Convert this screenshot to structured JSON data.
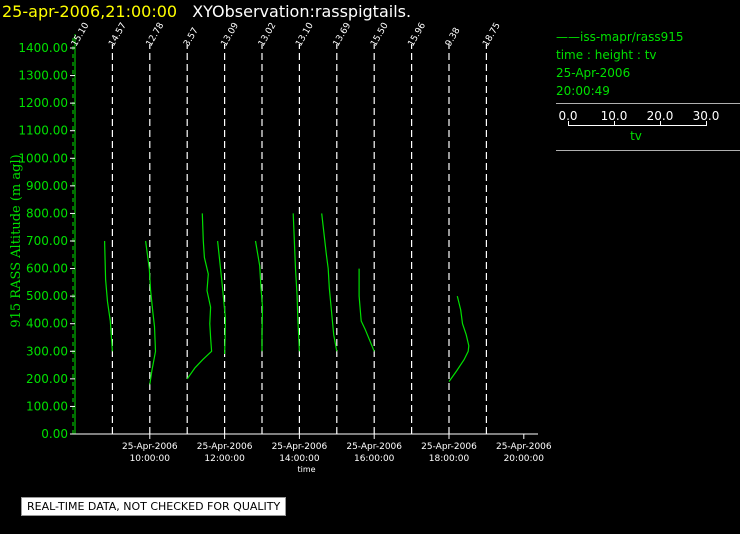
{
  "header": {
    "datetime": "25-apr-2006,21:00:00",
    "title": "XYObservation:rasspigtails."
  },
  "legend": {
    "series_name": "iss-mapr/rass915",
    "fields": "time : height : tv",
    "date": "25-Apr-2006",
    "time": "20:00:49",
    "scale_ticks": [
      "0.0",
      "10.0",
      "20.0",
      "30.0"
    ],
    "scale_label": "tv"
  },
  "footer_note": "REAL-TIME DATA, NOT CHECKED FOR QUALITY",
  "colors": {
    "data": "#00e000",
    "dashed": "#ffffff",
    "header_date": "#ffff00"
  },
  "chart_data": {
    "type": "line",
    "ylabel": "915 RASS Altitude (m agl)",
    "xlabel": "time",
    "ylim": [
      0,
      1400
    ],
    "yticks": [
      "0.00",
      "100.00",
      "200.00",
      "300.00",
      "400.00",
      "500.00",
      "600.00",
      "700.00",
      "800.00",
      "900.00",
      "1000.00",
      "1100.00",
      "1200.00",
      "1300.00",
      "1400.00"
    ],
    "xlim_hours": [
      8.0,
      21.0
    ],
    "xticks": [
      {
        "date": "25-Apr-2006",
        "time": "10:00:00",
        "hour": 10
      },
      {
        "date": "25-Apr-2006",
        "time": "12:00:00",
        "hour": 12
      },
      {
        "date": "25-Apr-2006",
        "time": "14:00:00",
        "hour": 14
      },
      {
        "date": "25-Apr-2006",
        "time": "16:00:00",
        "hour": 16
      },
      {
        "date": "25-Apr-2006",
        "time": "18:00:00",
        "hour": 18
      },
      {
        "date": "25-Apr-2006",
        "time": "20:00:00",
        "hour": 20
      }
    ],
    "tv_scale": "0 to 30 (tv units per legend scale)",
    "profiles": [
      {
        "label": "15.10",
        "hour": 8.0,
        "points": []
      },
      {
        "label": "14.57",
        "hour": 9.0,
        "points": [
          [
            0.0,
            300
          ],
          [
            -0.8,
            410
          ],
          [
            -1.9,
            480
          ],
          [
            -2.6,
            560
          ],
          [
            -3.0,
            700
          ]
        ]
      },
      {
        "label": "12.78",
        "hour": 10.0,
        "points": [
          [
            0.0,
            180
          ],
          [
            0.8,
            230
          ],
          [
            2.2,
            300
          ],
          [
            1.8,
            390
          ],
          [
            1.2,
            440
          ],
          [
            0.3,
            520
          ],
          [
            -0.2,
            600
          ],
          [
            -1.6,
            700
          ]
        ]
      },
      {
        "label": "3.57",
        "hour": 11.0,
        "points": [
          [
            0.0,
            200
          ],
          [
            3.0,
            240
          ],
          [
            6.0,
            270
          ],
          [
            9.4,
            300
          ],
          [
            9.0,
            350
          ],
          [
            8.7,
            400
          ],
          [
            9.0,
            460
          ],
          [
            7.6,
            520
          ],
          [
            8.1,
            580
          ],
          [
            6.6,
            640
          ],
          [
            6.2,
            700
          ],
          [
            5.8,
            800
          ]
        ]
      },
      {
        "label": "13.09",
        "hour": 12.0,
        "points": [
          [
            0.0,
            290
          ],
          [
            0.2,
            350
          ],
          [
            0.3,
            420
          ],
          [
            -0.5,
            500
          ],
          [
            -1.1,
            560
          ],
          [
            -2.7,
            700
          ]
        ]
      },
      {
        "label": "13.02",
        "hour": 13.0,
        "points": [
          [
            0.0,
            300
          ],
          [
            0.0,
            360
          ],
          [
            0.2,
            460
          ],
          [
            -0.4,
            530
          ],
          [
            -0.9,
            610
          ],
          [
            -2.5,
            700
          ]
        ]
      },
      {
        "label": "13.10",
        "hour": 14.0,
        "points": [
          [
            0.0,
            300
          ],
          [
            -0.6,
            420
          ],
          [
            -0.9,
            500
          ],
          [
            -1.5,
            600
          ],
          [
            -2.4,
            800
          ]
        ]
      },
      {
        "label": "13.69",
        "hour": 15.0,
        "points": [
          [
            0.0,
            300
          ],
          [
            -1.2,
            360
          ],
          [
            -2.9,
            530
          ],
          [
            -3.3,
            600
          ],
          [
            -4.0,
            650
          ],
          [
            -5.8,
            800
          ]
        ]
      },
      {
        "label": "15.50",
        "hour": 16.0,
        "points": [
          [
            0.0,
            300
          ],
          [
            -3.5,
            380
          ],
          [
            -5.0,
            410
          ],
          [
            -5.8,
            500
          ],
          [
            -5.8,
            600
          ]
        ]
      },
      {
        "label": "15.96",
        "hour": 17.0,
        "points": []
      },
      {
        "label": "9.38",
        "hour": 18.0,
        "points": [
          [
            0.0,
            190
          ],
          [
            3.0,
            230
          ],
          [
            5.8,
            270
          ],
          [
            7.4,
            300
          ],
          [
            7.6,
            320
          ],
          [
            6.6,
            360
          ],
          [
            5.2,
            400
          ],
          [
            4.5,
            450
          ],
          [
            3.2,
            500
          ]
        ]
      },
      {
        "label": "18.75",
        "hour": 19.0,
        "points": []
      }
    ]
  }
}
